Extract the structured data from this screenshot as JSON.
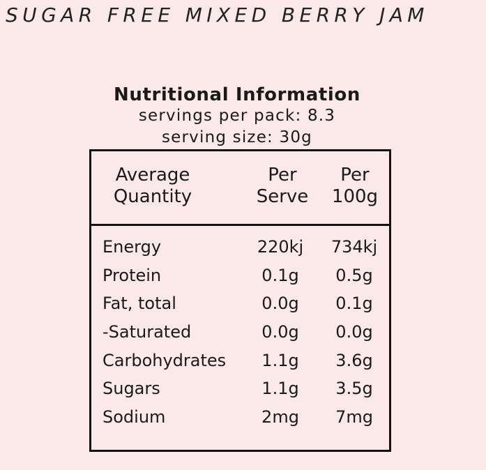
{
  "product": {
    "title": "SUGAR FREE MIXED BERRY JAM"
  },
  "nutrition": {
    "title": "Nutritional Information",
    "servings_per_pack": "servings per pack: 8.3",
    "serving_size": "serving size: 30g",
    "header": {
      "average_line1": "Average",
      "average_line2": "Quantity",
      "serve_line1": "Per",
      "serve_line2": "Serve",
      "per100_line1": "Per",
      "per100_line2": "100g"
    },
    "rows": [
      {
        "name": "Energy",
        "per_serve": "220kj",
        "per_100g": "734kj"
      },
      {
        "name": "Protein",
        "per_serve": "0.1g",
        "per_100g": "0.5g"
      },
      {
        "name": "Fat, total",
        "per_serve": "0.0g",
        "per_100g": "0.1g"
      },
      {
        "name": "-Saturated",
        "per_serve": "0.0g",
        "per_100g": "0.0g"
      },
      {
        "name": "Carbohydrates",
        "per_serve": "1.1g",
        "per_100g": "3.6g"
      },
      {
        "name": "Sugars",
        "per_serve": "1.1g",
        "per_100g": "3.5g"
      },
      {
        "name": "Sodium",
        "per_serve": "2mg",
        "per_100g": "7mg"
      }
    ]
  },
  "colors": {
    "background": "#fbe9e9",
    "text": "#1a1a1a",
    "border": "#111111"
  }
}
